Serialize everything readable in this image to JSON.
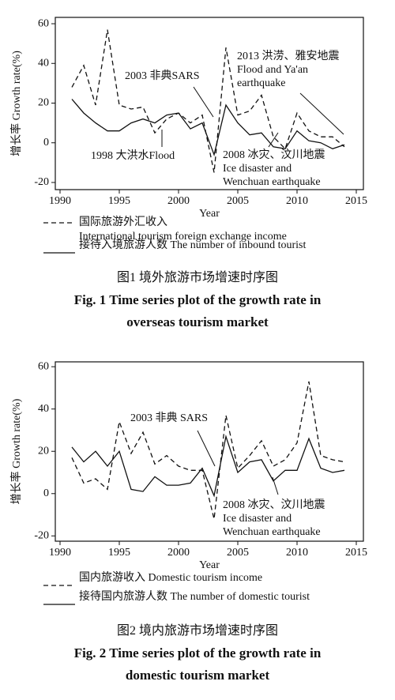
{
  "chart_data": [
    {
      "type": "line",
      "x": [
        1991,
        1992,
        1993,
        1994,
        1995,
        1996,
        1997,
        1998,
        1999,
        2000,
        2001,
        2002,
        2003,
        2004,
        2005,
        2006,
        2007,
        2008,
        2009,
        2010,
        2011,
        2012,
        2013,
        2014
      ],
      "xlim": [
        1989.6,
        2015.6
      ],
      "xticks": [
        1990,
        1995,
        2000,
        2005,
        2010,
        2015
      ],
      "ylim": [
        -23.6,
        63.2
      ],
      "yticks": [
        -20,
        0,
        20,
        40,
        60
      ],
      "xlabel": "Year",
      "ylabel": "增长率 Growth rate(%)",
      "series": [
        {
          "name": "国际旅游外汇收入\nInternational tourism foreign exchange income",
          "color": "#111111",
          "dash": true,
          "values": [
            28,
            39,
            19,
            57,
            19,
            17,
            18,
            5,
            12,
            15,
            10,
            14,
            -15,
            48,
            14,
            16,
            24,
            3,
            -3,
            15,
            6,
            3,
            3,
            -2
          ]
        },
        {
          "name": "接待入境旅游人数 The number of inbound tourist",
          "color": "#111111",
          "dash": false,
          "values": [
            22,
            15,
            10,
            6,
            6,
            10,
            12,
            10,
            14,
            15,
            7,
            10,
            -6,
            19,
            10,
            4,
            5,
            -2,
            -3,
            6,
            1,
            0,
            -3,
            -1
          ]
        }
      ],
      "annotations": [
        [
          "2003 非典SARS"
        ],
        [
          "2013 洪涝、雅安地震",
          "Flood and Ya'an",
          "earthquake"
        ],
        [
          "1998 大洪水Flood"
        ],
        [
          "2008 冰灾、汶川地震",
          "Ice disaster and",
          "Wenchuan earthquake"
        ]
      ],
      "caption": [
        "图1   境外旅游市场增速时序图",
        "Fig. 1   Time series plot of the growth rate in",
        "overseas tourism market"
      ]
    },
    {
      "type": "line",
      "x": [
        1991,
        1992,
        1993,
        1994,
        1995,
        1996,
        1997,
        1998,
        1999,
        2000,
        2001,
        2002,
        2003,
        2004,
        2005,
        2006,
        2007,
        2008,
        2009,
        2010,
        2011,
        2012,
        2013,
        2014
      ],
      "xlim": [
        1989.6,
        2015.6
      ],
      "xticks": [
        1990,
        1995,
        2000,
        2005,
        2010,
        2015
      ],
      "ylim": [
        -22.5,
        62.3
      ],
      "yticks": [
        -20,
        0,
        20,
        40,
        60
      ],
      "xlabel": "Year",
      "ylabel": "增长率 Growth rate(%)",
      "series": [
        {
          "name": "国内旅游收入 Domestic tourism income",
          "color": "#111111",
          "dash": true,
          "values": [
            17,
            5,
            7,
            2,
            34,
            19,
            29,
            14,
            18,
            13,
            11,
            11,
            -12,
            37,
            12,
            18,
            25,
            13,
            16,
            24,
            53,
            18,
            16,
            15
          ]
        },
        {
          "name": "接待国内旅游人数 The number of domestic tourist",
          "color": "#111111",
          "dash": false,
          "values": [
            22,
            15,
            20,
            13,
            20,
            2,
            1,
            8,
            4,
            4,
            5,
            12,
            -1,
            27,
            10,
            15,
            16,
            6,
            11,
            11,
            26,
            12,
            10,
            11
          ]
        }
      ],
      "annotations": [
        [
          "2003 非典 SARS"
        ],
        [
          "2008 冰灾、汶川地震",
          "Ice disaster and",
          "Wenchuan earthquake"
        ]
      ],
      "caption": [
        "图2   境内旅游市场增速时序图",
        "Fig. 2   Time series plot of the growth rate in",
        "domestic tourism market"
      ]
    }
  ]
}
